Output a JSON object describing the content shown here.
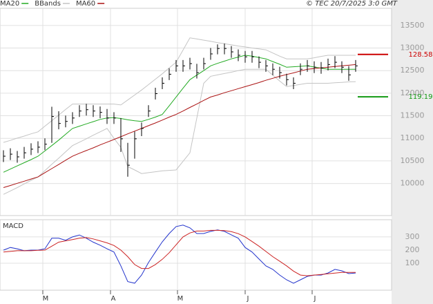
{
  "header": "© TEC 20/7/2025 3:0 GMT",
  "chart_data": [
    {
      "type": "ohlc",
      "xlim": [
        -0.5,
        56.2
      ],
      "ylim": [
        9290,
        13880
      ],
      "yticks": [
        10000,
        10500,
        11000,
        11500,
        12000,
        12500,
        13000,
        13500
      ],
      "grid": true,
      "color": "#000000",
      "close": [
        10605,
        10650,
        10590,
        10680,
        10760,
        10805,
        10870,
        11485,
        11330,
        11375,
        11450,
        11605,
        11635,
        11605,
        11575,
        11450,
        11450,
        10990,
        10405,
        10990,
        11220,
        11605,
        11990,
        12220,
        12420,
        12605,
        12605,
        12655,
        12455,
        12655,
        12870,
        12990,
        12990,
        12915,
        12840,
        12805,
        12805,
        12685,
        12605,
        12530,
        12455,
        12300,
        12220,
        12530,
        12605,
        12575,
        12560,
        12635,
        12685,
        12575,
        12405,
        12605
      ],
      "high": [
        10735,
        10780,
        10720,
        10810,
        10890,
        10935,
        11000,
        11700,
        11600,
        11505,
        11580,
        11735,
        11765,
        11735,
        11705,
        11650,
        11580,
        11450,
        10900,
        11150,
        11350,
        11735,
        12120,
        12350,
        12550,
        12735,
        12735,
        12785,
        12650,
        12785,
        13000,
        13080,
        13100,
        13045,
        12970,
        12935,
        12935,
        12815,
        12735,
        12660,
        12585,
        12430,
        12350,
        12660,
        12735,
        12705,
        12690,
        12765,
        12820,
        12705,
        12600,
        12735
      ],
      "low": [
        10475,
        10520,
        10460,
        10550,
        10630,
        10675,
        10740,
        10900,
        11200,
        11245,
        11320,
        11475,
        11505,
        11475,
        11445,
        11320,
        11320,
        10700,
        10150,
        10550,
        11050,
        11475,
        11860,
        12090,
        12290,
        12475,
        12475,
        12525,
        12325,
        12525,
        12740,
        12860,
        12860,
        12785,
        12710,
        12675,
        12675,
        12555,
        12475,
        12400,
        12325,
        12170,
        12090,
        12400,
        12475,
        12445,
        12430,
        12505,
        12555,
        12445,
        12275,
        12475
      ],
      "series": [
        {
          "name": "MA20",
          "color": "#22aa22",
          "values": [
            10250,
            10320,
            10390,
            10460,
            10530,
            10605,
            10720,
            10840,
            10960,
            11090,
            11220,
            11270,
            11320,
            11370,
            11420,
            11450,
            11460,
            11440,
            11410,
            11390,
            11375,
            11420,
            11470,
            11530,
            11720,
            11915,
            12110,
            12300,
            12400,
            12500,
            12605,
            12660,
            12710,
            12760,
            12800,
            12840,
            12820,
            12790,
            12760,
            12700,
            12640,
            12575,
            12585,
            12595,
            12605,
            12580,
            12555,
            12530,
            12530,
            12530,
            12530,
            12530
          ]
        },
        {
          "name": "BBands",
          "color": "#c4c4c4",
          "upper": [
            10910,
            10955,
            11005,
            11050,
            11100,
            11145,
            11270,
            11390,
            11515,
            11640,
            11760,
            11760,
            11760,
            11760,
            11760,
            11760,
            11760,
            11740,
            11850,
            11960,
            12070,
            12190,
            12310,
            12430,
            12560,
            12685,
            12955,
            13225,
            13200,
            13175,
            13150,
            13120,
            13095,
            13070,
            13045,
            13025,
            13000,
            12980,
            12960,
            12890,
            12820,
            12760,
            12760,
            12760,
            12760,
            12785,
            12815,
            12840,
            12840,
            12840,
            12840,
            12840
          ],
          "lower": [
            9760,
            9835,
            9910,
            9990,
            10070,
            10145,
            10285,
            10425,
            10560,
            10700,
            10840,
            10915,
            10990,
            11070,
            11145,
            11220,
            11000,
            10800,
            10375,
            10300,
            10220,
            10240,
            10260,
            10280,
            10290,
            10300,
            10490,
            10680,
            11450,
            12220,
            12375,
            12405,
            12435,
            12465,
            12500,
            12530,
            12530,
            12530,
            12530,
            12400,
            12270,
            12145,
            12170,
            12195,
            12220,
            12220,
            12220,
            12220,
            12230,
            12240,
            12250,
            12255
          ]
        },
        {
          "name": "MA60",
          "color": "#aa1111",
          "values": [
            9910,
            9955,
            10005,
            10050,
            10100,
            10145,
            10240,
            10330,
            10420,
            10515,
            10605,
            10670,
            10730,
            10790,
            10855,
            10915,
            10975,
            11035,
            11100,
            11160,
            11220,
            11280,
            11340,
            11405,
            11470,
            11530,
            11605,
            11685,
            11760,
            11840,
            11915,
            11960,
            12010,
            12055,
            12100,
            12145,
            12190,
            12235,
            12285,
            12330,
            12375,
            12415,
            12450,
            12490,
            12530,
            12545,
            12560,
            12575,
            12590,
            12605,
            12620,
            12635
          ]
        }
      ],
      "annotations": [
        {
          "value": 12858,
          "label": "128.58",
          "color": "#cc0000"
        },
        {
          "value": 11919,
          "label": "119.19",
          "color": "#119911"
        }
      ]
    },
    {
      "type": "line",
      "title": "MACD",
      "xlim": [
        -0.5,
        56.2
      ],
      "ylim": [
        -105,
        431
      ],
      "yticks": [
        100,
        200,
        300
      ],
      "grid": true,
      "xticks": [
        {
          "value": 5.7,
          "label": "M"
        },
        {
          "value": 15.5,
          "label": "A"
        },
        {
          "value": 25.2,
          "label": "M"
        },
        {
          "value": 35,
          "label": "J"
        },
        {
          "value": 44.7,
          "label": "J"
        }
      ],
      "series": [
        {
          "color": "#2233cc",
          "values": [
            200,
            220,
            210,
            195,
            200,
            200,
            210,
            290,
            290,
            275,
            300,
            315,
            290,
            260,
            237,
            210,
            185,
            80,
            -40,
            -52,
            10,
            105,
            185,
            263,
            326,
            379,
            390,
            369,
            326,
            326,
            342,
            353,
            342,
            316,
            290,
            220,
            185,
            132,
            80,
            53,
            10,
            -26,
            -52,
            -26,
            0,
            10,
            10,
            26,
            53,
            42,
            21,
            26
          ]
        },
        {
          "color": "#cc2222",
          "values": [
            185,
            190,
            195,
            195,
            195,
            198,
            200,
            230,
            260,
            270,
            280,
            290,
            295,
            285,
            270,
            255,
            235,
            200,
            150,
            90,
            60,
            60,
            90,
            130,
            180,
            240,
            300,
            330,
            345,
            345,
            350,
            350,
            348,
            340,
            325,
            300,
            265,
            230,
            190,
            150,
            115,
            80,
            40,
            10,
            5,
            10,
            15,
            20,
            25,
            30,
            30,
            30
          ]
        }
      ]
    }
  ]
}
